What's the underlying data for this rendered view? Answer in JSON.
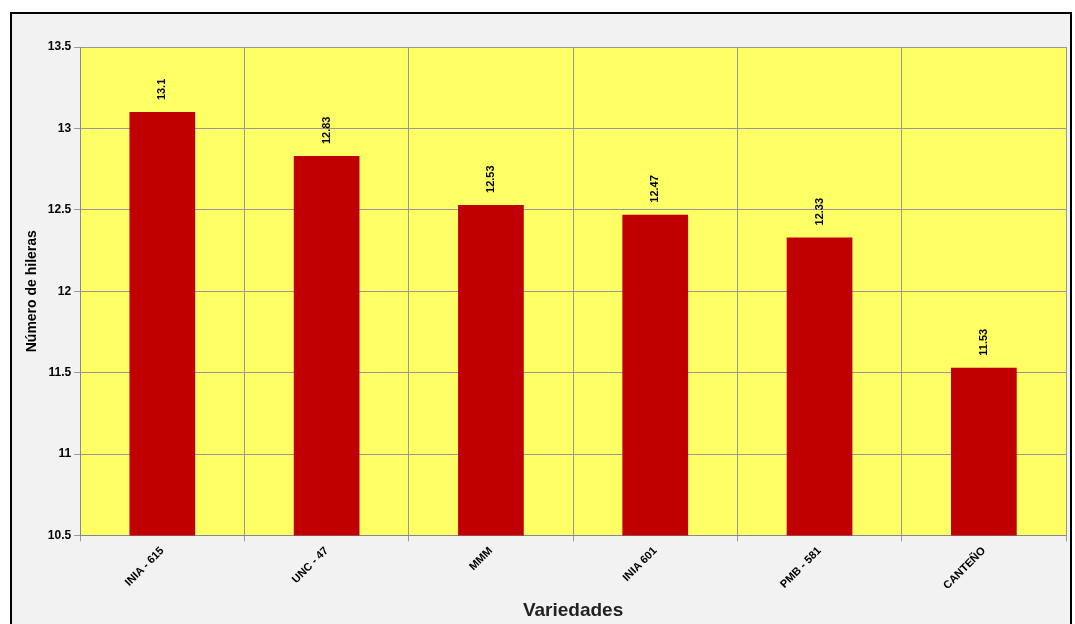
{
  "chart_data": {
    "type": "bar",
    "xlabel": "Variedades",
    "ylabel": "Número de hileras",
    "categories": [
      "INIA - 615",
      "UNC - 47",
      "MMM",
      "INIA 601",
      "PMB - 581",
      "CANTEÑO"
    ],
    "values": [
      13.1,
      12.83,
      12.53,
      12.47,
      12.33,
      11.53
    ],
    "color": "#c00000",
    "ylim": [
      10.5,
      13.5
    ],
    "yticks": [
      10.5,
      11,
      11.5,
      12,
      12.5,
      13,
      13.5
    ],
    "grid": true,
    "data_labels": true
  }
}
